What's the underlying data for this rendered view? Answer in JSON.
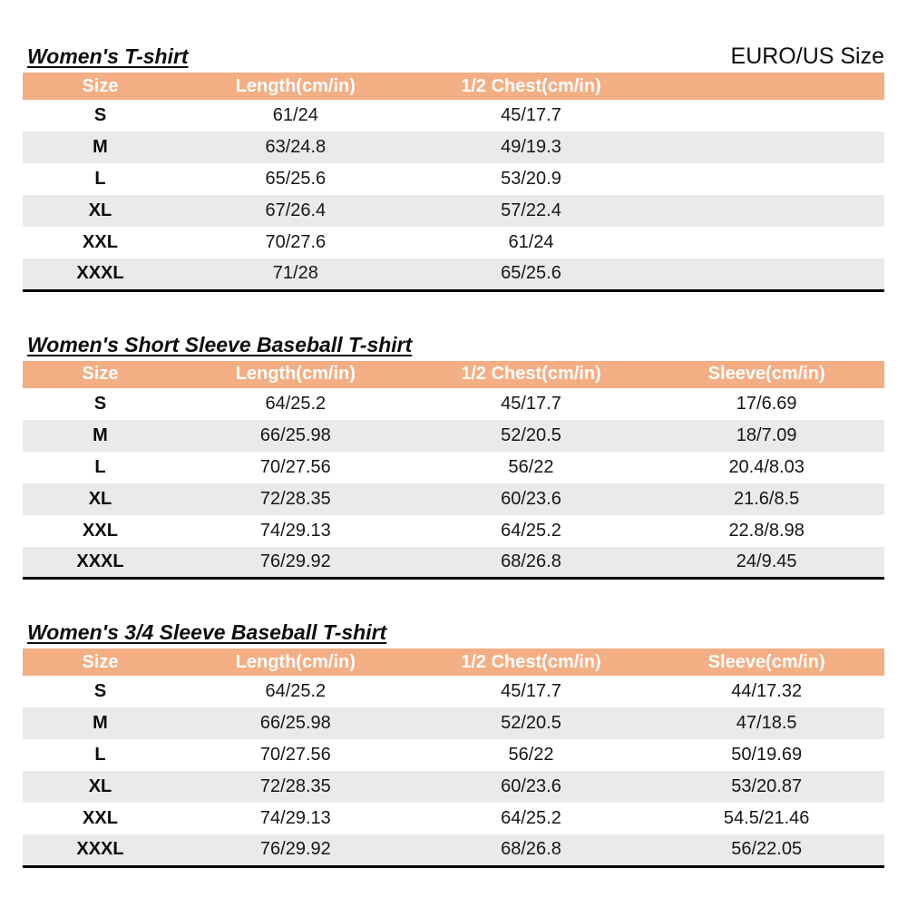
{
  "page": {
    "size_standard_label": "EURO/US Size"
  },
  "colors": {
    "header_bg": "#F4AE83",
    "header_text": "#FFFFFF",
    "alt_row_bg": "#EAEAEA",
    "table_bottom_border": "#000000"
  },
  "tables": [
    {
      "title": "Women's T-shirt",
      "columns": [
        "Size",
        "Length(cm/in)",
        "1/2 Chest(cm/in)",
        ""
      ],
      "rows": [
        [
          "S",
          "61/24",
          "45/17.7",
          ""
        ],
        [
          "M",
          "63/24.8",
          "49/19.3",
          ""
        ],
        [
          "L",
          "65/25.6",
          "53/20.9",
          ""
        ],
        [
          "XL",
          "67/26.4",
          "57/22.4",
          ""
        ],
        [
          "XXL",
          "70/27.6",
          "61/24",
          ""
        ],
        [
          "XXXL",
          "71/28",
          "65/25.6",
          ""
        ]
      ]
    },
    {
      "title": "Women's Short Sleeve Baseball T-shirt",
      "columns": [
        "Size",
        "Length(cm/in)",
        "1/2 Chest(cm/in)",
        "Sleeve(cm/in)"
      ],
      "rows": [
        [
          "S",
          "64/25.2",
          "45/17.7",
          "17/6.69"
        ],
        [
          "M",
          "66/25.98",
          "52/20.5",
          "18/7.09"
        ],
        [
          "L",
          "70/27.56",
          "56/22",
          "20.4/8.03"
        ],
        [
          "XL",
          "72/28.35",
          "60/23.6",
          "21.6/8.5"
        ],
        [
          "XXL",
          "74/29.13",
          "64/25.2",
          "22.8/8.98"
        ],
        [
          "XXXL",
          "76/29.92",
          "68/26.8",
          "24/9.45"
        ]
      ]
    },
    {
      "title": "Women's 3/4 Sleeve Baseball T-shirt",
      "columns": [
        "Size",
        "Length(cm/in)",
        "1/2 Chest(cm/in)",
        "Sleeve(cm/in)"
      ],
      "rows": [
        [
          "S",
          "64/25.2",
          "45/17.7",
          "44/17.32"
        ],
        [
          "M",
          "66/25.98",
          "52/20.5",
          "47/18.5"
        ],
        [
          "L",
          "70/27.56",
          "56/22",
          "50/19.69"
        ],
        [
          "XL",
          "72/28.35",
          "60/23.6",
          "53/20.87"
        ],
        [
          "XXL",
          "74/29.13",
          "64/25.2",
          "54.5/21.46"
        ],
        [
          "XXXL",
          "76/29.92",
          "68/26.8",
          "56/22.05"
        ]
      ]
    }
  ]
}
